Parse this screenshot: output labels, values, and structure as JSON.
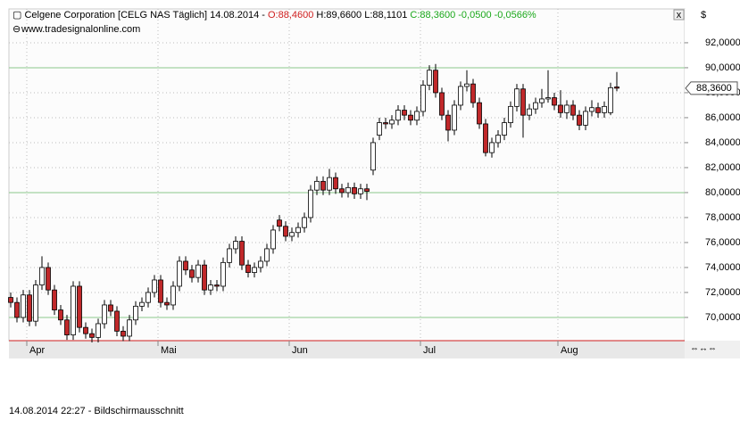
{
  "chart_data": {
    "type": "candlestick",
    "title": "Celgene Corporation [CELG NAS  Täglich] 14.08.2014 -",
    "ohlc_header": {
      "open": "O:88,4600",
      "high": "H:89,6600",
      "low": "L:88,1101",
      "close": "C:88,3600",
      "change": "-0,0500",
      "change_pct": "-0,0566%"
    },
    "source": "www.tradesignalonline.com",
    "currency": "$",
    "close_button": "x",
    "footer": "14.08.2014 22:27 - Bildschirmausschnitt",
    "last_price": {
      "value": 88.36,
      "label": "88,3600"
    },
    "up_color": "#ffffff",
    "down_color": "#c0282a",
    "hline_color": "#8cc88c",
    "hlines": [
      70,
      80,
      90
    ],
    "grid": true,
    "ylim": [
      68.14,
      94.71
    ],
    "yticks": [
      {
        "value": 70,
        "label": "70,0000"
      },
      {
        "value": 72,
        "label": "72,0000"
      },
      {
        "value": 74,
        "label": "74,0000"
      },
      {
        "value": 76,
        "label": "76,0000"
      },
      {
        "value": 78,
        "label": "78,0000"
      },
      {
        "value": 80,
        "label": "80,0000"
      },
      {
        "value": 82,
        "label": "82,0000"
      },
      {
        "value": 84,
        "label": "84,0000"
      },
      {
        "value": 86,
        "label": "86,0000"
      },
      {
        "value": 88,
        "label": "88,0000"
      },
      {
        "value": 90,
        "label": "90,0000"
      },
      {
        "value": 92,
        "label": "92,0000"
      }
    ],
    "categories": [
      null,
      null,
      null,
      "Apr",
      null,
      null,
      null,
      null,
      null,
      null,
      null,
      null,
      null,
      null,
      null,
      null,
      null,
      null,
      null,
      null,
      null,
      null,
      null,
      null,
      "Mai",
      null,
      null,
      null,
      null,
      null,
      null,
      null,
      null,
      null,
      null,
      null,
      null,
      null,
      null,
      null,
      null,
      null,
      null,
      null,
      null,
      "Jun",
      null,
      null,
      null,
      null,
      null,
      null,
      null,
      null,
      null,
      null,
      null,
      null,
      null,
      null,
      null,
      null,
      null,
      null,
      null,
      null,
      "Jul",
      null,
      null,
      null,
      null,
      null,
      null,
      null,
      null,
      null,
      null,
      null,
      null,
      null,
      null,
      null,
      null,
      null,
      null,
      null,
      null,
      null,
      "Aug",
      null,
      null,
      null,
      null,
      null,
      null,
      null,
      null,
      null
    ],
    "open": [
      71.6,
      71.2,
      70.0,
      71.8,
      69.7,
      72.6,
      74.0,
      72.2,
      70.6,
      69.8,
      68.6,
      72.5,
      69.2,
      68.7,
      68.4,
      69.5,
      71.0,
      70.5,
      68.9,
      68.5,
      69.8,
      70.9,
      71.2,
      72.0,
      73.0,
      71.2,
      71.0,
      72.5,
      74.5,
      73.8,
      73.2,
      74.2,
      72.2,
      72.6,
      72.5,
      74.4,
      75.5,
      76.1,
      74.2,
      73.6,
      74.0,
      74.5,
      75.5,
      77.8,
      77.3,
      76.5,
      76.8,
      77.2,
      78.0,
      80.2,
      80.9,
      80.2,
      81.2,
      80.3,
      80.0,
      80.4,
      79.9,
      80.3,
      81.8,
      84.6,
      85.6,
      85.5,
      85.8,
      86.6,
      86.2,
      85.8,
      86.5,
      88.6,
      89.8,
      88.0,
      86.2,
      85.0,
      87.0,
      88.5,
      88.7,
      87.2,
      85.5,
      83.2,
      84.0,
      84.6,
      85.6,
      86.9,
      88.3,
      86.2,
      86.7,
      87.2,
      87.5,
      87.6,
      87.0,
      86.4,
      87.0,
      86.2,
      85.4,
      86.5,
      86.8,
      86.4,
      86.4,
      88.46
    ],
    "high": [
      72.0,
      71.6,
      72.2,
      72.2,
      73.0,
      74.9,
      74.4,
      72.6,
      71.0,
      70.2,
      72.9,
      72.9,
      69.6,
      69.1,
      69.9,
      71.4,
      71.4,
      70.9,
      69.3,
      70.2,
      71.3,
      71.6,
      72.4,
      73.4,
      73.4,
      71.6,
      72.9,
      74.9,
      74.9,
      74.2,
      74.6,
      74.6,
      73.0,
      73.0,
      74.8,
      75.9,
      76.5,
      76.5,
      74.6,
      74.4,
      74.9,
      75.9,
      77.4,
      78.2,
      77.7,
      77.2,
      77.6,
      78.4,
      80.6,
      81.3,
      81.3,
      81.9,
      81.6,
      80.7,
      80.8,
      80.8,
      80.7,
      80.7,
      84.4,
      86.0,
      86.0,
      86.2,
      87.0,
      87.0,
      86.6,
      86.9,
      89.0,
      90.2,
      90.3,
      88.4,
      86.6,
      87.4,
      88.9,
      89.8,
      89.1,
      87.6,
      85.9,
      84.4,
      85.0,
      86.0,
      87.3,
      88.7,
      88.7,
      87.1,
      87.6,
      88.3,
      89.8,
      88.0,
      88.2,
      87.4,
      87.4,
      86.6,
      86.9,
      87.4,
      87.2,
      87.3,
      88.8,
      89.66
    ],
    "low": [
      70.8,
      69.6,
      69.6,
      69.3,
      69.3,
      72.2,
      71.8,
      70.2,
      69.4,
      68.2,
      68.2,
      68.8,
      68.3,
      68.0,
      68.0,
      69.1,
      70.1,
      68.5,
      68.1,
      68.1,
      69.4,
      70.5,
      70.8,
      71.6,
      70.8,
      70.6,
      70.6,
      72.1,
      73.4,
      72.8,
      72.8,
      71.8,
      71.8,
      72.1,
      72.1,
      74.0,
      75.1,
      73.8,
      73.2,
      73.2,
      73.6,
      74.1,
      75.1,
      76.9,
      76.1,
      76.1,
      76.4,
      76.8,
      77.6,
      79.8,
      79.8,
      79.8,
      79.9,
      79.6,
      79.6,
      79.5,
      79.5,
      79.4,
      81.4,
      84.2,
      85.1,
      85.1,
      85.4,
      85.8,
      85.4,
      85.4,
      86.1,
      88.2,
      87.6,
      85.8,
      84.1,
      84.6,
      86.6,
      88.1,
      86.8,
      85.1,
      82.9,
      82.8,
      83.6,
      84.2,
      85.2,
      86.5,
      84.4,
      85.8,
      86.3,
      86.8,
      87.2,
      86.6,
      86.0,
      85.9,
      85.8,
      85.0,
      85.0,
      86.1,
      86.0,
      86.0,
      86.2,
      88.11
    ],
    "close": [
      71.2,
      70.0,
      71.8,
      69.7,
      72.6,
      74.0,
      72.2,
      70.6,
      69.8,
      68.6,
      72.5,
      69.2,
      68.7,
      68.4,
      69.5,
      71.0,
      70.5,
      68.9,
      68.5,
      69.8,
      70.9,
      71.2,
      72.0,
      73.0,
      71.2,
      71.0,
      72.5,
      74.5,
      73.8,
      73.2,
      74.2,
      72.2,
      72.6,
      72.5,
      74.4,
      75.5,
      76.1,
      74.2,
      73.6,
      74.0,
      74.5,
      75.5,
      77.0,
      77.3,
      76.5,
      76.8,
      77.2,
      78.0,
      80.2,
      80.9,
      80.2,
      81.2,
      80.3,
      80.0,
      80.4,
      79.9,
      80.3,
      80.1,
      84.0,
      85.6,
      85.5,
      85.8,
      86.6,
      86.2,
      85.8,
      86.5,
      88.6,
      89.8,
      88.0,
      86.2,
      85.0,
      87.0,
      88.5,
      88.7,
      87.2,
      85.5,
      83.2,
      84.0,
      84.6,
      85.6,
      86.9,
      88.3,
      86.2,
      86.7,
      87.2,
      87.5,
      87.6,
      87.0,
      86.4,
      87.0,
      86.2,
      85.4,
      86.5,
      86.8,
      86.4,
      86.9,
      88.4,
      88.36
    ]
  }
}
